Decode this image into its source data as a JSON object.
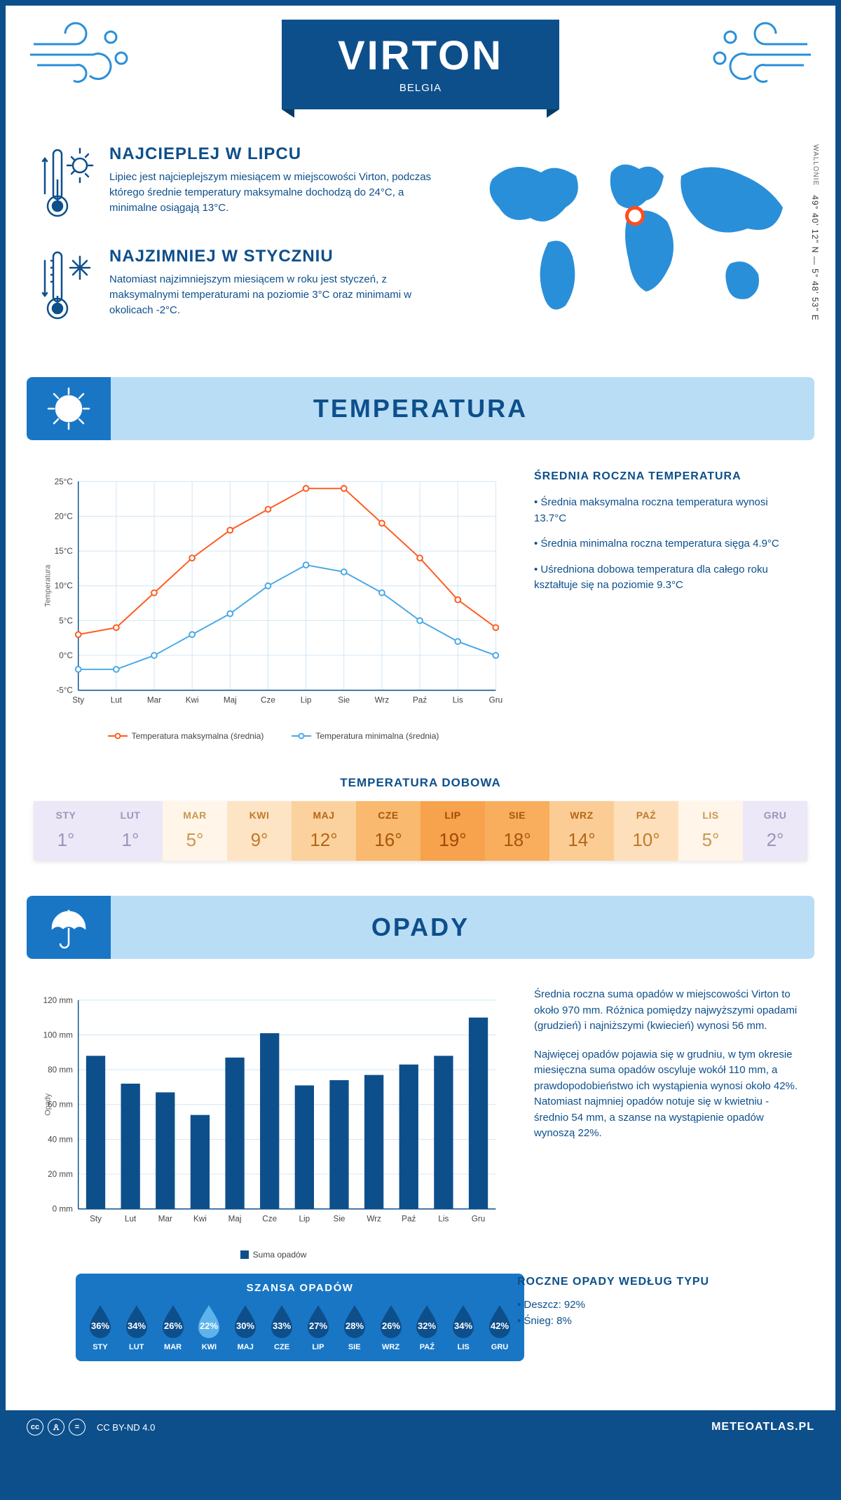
{
  "header": {
    "city": "VIRTON",
    "country": "BELGIA"
  },
  "coords": {
    "region": "WALLONIE",
    "lat": "49° 40' 12\" N",
    "lon": "5° 48' 53\" E"
  },
  "map_marker": {
    "left_pct": 48,
    "top_pct": 30
  },
  "facts": {
    "warm": {
      "title": "NAJCIEPLEJ W LIPCU",
      "body": "Lipiec jest najcieplejszym miesiącem w miejscowości Virton, podczas którego średnie temperatury maksymalne dochodzą do 24°C, a minimalne osiągają 13°C."
    },
    "cold": {
      "title": "NAJZIMNIEJ W STYCZNIU",
      "body": "Natomiast najzimniejszym miesiącem w roku jest styczeń, z maksymalnymi temperaturami na poziomie 3°C oraz minimami w okolicach -2°C."
    }
  },
  "months_short": [
    "Sty",
    "Lut",
    "Mar",
    "Kwi",
    "Maj",
    "Cze",
    "Lip",
    "Sie",
    "Wrz",
    "Paź",
    "Lis",
    "Gru"
  ],
  "months_upper": [
    "STY",
    "LUT",
    "MAR",
    "KWI",
    "MAJ",
    "CZE",
    "LIP",
    "SIE",
    "WRZ",
    "PAŹ",
    "LIS",
    "GRU"
  ],
  "temp_section": {
    "title": "TEMPERATURA",
    "chart": {
      "type": "line",
      "ylabel": "Temperatura",
      "ylim": [
        -5,
        25
      ],
      "ytick_step": 5,
      "ytick_suffix": "°C",
      "grid_color": "#cfe6f5",
      "background": "#ffffff",
      "series": [
        {
          "name": "Temperatura maksymalna (średnia)",
          "color": "#ff5a1f",
          "marker": "circle",
          "values": [
            3,
            4,
            9,
            14,
            18,
            21,
            24,
            24,
            19,
            14,
            8,
            4
          ]
        },
        {
          "name": "Temperatura minimalna (średnia)",
          "color": "#4aa8e8",
          "marker": "circle",
          "values": [
            -2,
            -2,
            0,
            3,
            6,
            10,
            13,
            12,
            9,
            5,
            2,
            0
          ]
        }
      ]
    },
    "side": {
      "title": "ŚREDNIA ROCZNA TEMPERATURA",
      "bullets": [
        "• Średnia maksymalna roczna temperatura wynosi 13.7°C",
        "• Średnia minimalna roczna temperatura sięga 4.9°C",
        "• Uśredniona dobowa temperatura dla całego roku kształtuje się na poziomie 9.3°C"
      ]
    },
    "daily": {
      "title": "TEMPERATURA DOBOWA",
      "values": [
        1,
        1,
        5,
        9,
        12,
        16,
        19,
        18,
        14,
        10,
        5,
        2
      ],
      "colors": [
        "#ece8f7",
        "#ece8f7",
        "#fff5e8",
        "#fde4c4",
        "#fbd29e",
        "#f9b96e",
        "#f7a24c",
        "#f8ae5d",
        "#fbcd94",
        "#fde0bb",
        "#fff5e8",
        "#ece8f7"
      ],
      "text_colors": [
        "#9a95bb",
        "#9a95bb",
        "#c9974f",
        "#c07a2a",
        "#b66518",
        "#a9550c",
        "#9e4a05",
        "#a9550c",
        "#b66518",
        "#c07a2a",
        "#c9974f",
        "#9a95bb"
      ]
    }
  },
  "opady_section": {
    "title": "OPADY",
    "chart": {
      "type": "bar",
      "ylabel": "Opady",
      "ylim": [
        0,
        120
      ],
      "ytick_step": 20,
      "ytick_suffix": " mm",
      "bar_color": "#0d4f8b",
      "bar_width": 0.55,
      "values": [
        88,
        72,
        67,
        54,
        87,
        101,
        71,
        74,
        77,
        83,
        88,
        110
      ],
      "legend": "Suma opadów"
    },
    "texts": [
      "Średnia roczna suma opadów w miejscowości Virton to około 970 mm. Różnica pomiędzy najwyższymi opadami (grudzień) i najniższymi (kwiecień) wynosi 56 mm.",
      "Najwięcej opadów pojawia się w grudniu, w tym okresie miesięczna suma opadów oscyluje wokół 110 mm, a prawdopodobieństwo ich wystąpienia wynosi około 42%. Natomiast najmniej opadów notuje się w kwietniu - średnio 54 mm, a szanse na wystąpienie opadów wynoszą 22%."
    ],
    "chance": {
      "title": "SZANSA OPADÓW",
      "values": [
        36,
        34,
        26,
        22,
        30,
        33,
        27,
        28,
        26,
        32,
        34,
        42
      ],
      "drop_dark": "#0d4f8b",
      "drop_light": "#5db3ec"
    },
    "by_type": {
      "title": "ROCZNE OPADY WEDŁUG TYPU",
      "bullets": [
        "• Deszcz: 92%",
        "• Śnieg: 8%"
      ]
    }
  },
  "footer": {
    "license": "CC BY-ND 4.0",
    "site": "METEOATLAS.PL"
  },
  "colors": {
    "primary": "#0d4f8b",
    "light_blue": "#b8ddf5",
    "mid_blue": "#1976c5",
    "sky": "#2a8fd9",
    "orange": "#ff5a1f"
  }
}
